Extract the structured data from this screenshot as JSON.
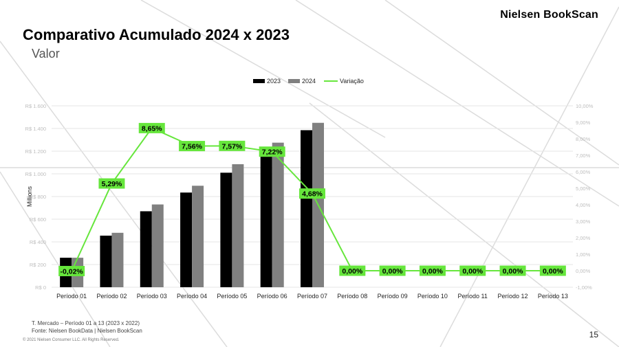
{
  "header": {
    "brand": "Nielsen BookScan",
    "title": "Comparativo Acumulado 2024 x 2023",
    "subtitle": "Valor"
  },
  "footer": {
    "note": "T. Mercado – Período 01 a 13 (2023 x 2022)",
    "source": "Fonte: Nielsen BookData | Nielsen BookScan",
    "copyright": "© 2021 Nielsen Consumer LLC. All Rights Reserved.",
    "page_number": "15"
  },
  "colors": {
    "series_2023": "#000000",
    "series_2024": "#808080",
    "variation_line": "#66e63c",
    "gridline": "#e6e6e6"
  },
  "chart_data": {
    "type": "bar",
    "categories": [
      "Período 01",
      "Período 02",
      "Período 03",
      "Período 04",
      "Período 05",
      "Período 06",
      "Período 07",
      "Período 08",
      "Período 09",
      "Período 10",
      "Período 11",
      "Período 12",
      "Período 13"
    ],
    "series": [
      {
        "name": "2023",
        "values": [
          260,
          455,
          670,
          835,
          1010,
          1190,
          1385,
          null,
          null,
          null,
          null,
          null,
          null
        ]
      },
      {
        "name": "2024",
        "values": [
          260,
          480,
          730,
          895,
          1085,
          1275,
          1450,
          null,
          null,
          null,
          null,
          null,
          null
        ]
      }
    ],
    "line_series": {
      "name": "Variação",
      "values": [
        -0.02,
        5.29,
        8.65,
        7.56,
        7.57,
        7.22,
        4.68,
        0.0,
        0.0,
        0.0,
        0.0,
        0.0,
        0.0
      ],
      "labels": [
        "-0,02%",
        "5,29%",
        "8,65%",
        "7,56%",
        "7,57%",
        "7,22%",
        "4,68%",
        "0,00%",
        "0,00%",
        "0,00%",
        "0,00%",
        "0,00%",
        "0,00%"
      ]
    },
    "ylabel": "Millions",
    "ylim": [
      0,
      1600
    ],
    "y_ticks": [
      0,
      200,
      400,
      600,
      800,
      1000,
      1200,
      1400,
      1600
    ],
    "y_tick_labels": [
      "R$ 0",
      "R$ 200",
      "R$ 400",
      "R$ 600",
      "R$ 800",
      "R$ 1.000",
      "R$ 1.200",
      "R$ 1.400",
      "R$ 1.600"
    ],
    "y2lim": [
      -1,
      10
    ],
    "y2_ticks": [
      -1,
      0,
      1,
      2,
      3,
      4,
      5,
      6,
      7,
      8,
      9,
      10
    ],
    "y2_tick_labels": [
      "-1,00%",
      "0,00%",
      "1,00%",
      "2,00%",
      "3,00%",
      "4,00%",
      "5,00%",
      "6,00%",
      "7,00%",
      "8,00%",
      "9,00%",
      "10,00%"
    ],
    "legend": [
      "2023",
      "2024",
      "Variação"
    ],
    "legend_position": "top-center",
    "grid": true
  }
}
